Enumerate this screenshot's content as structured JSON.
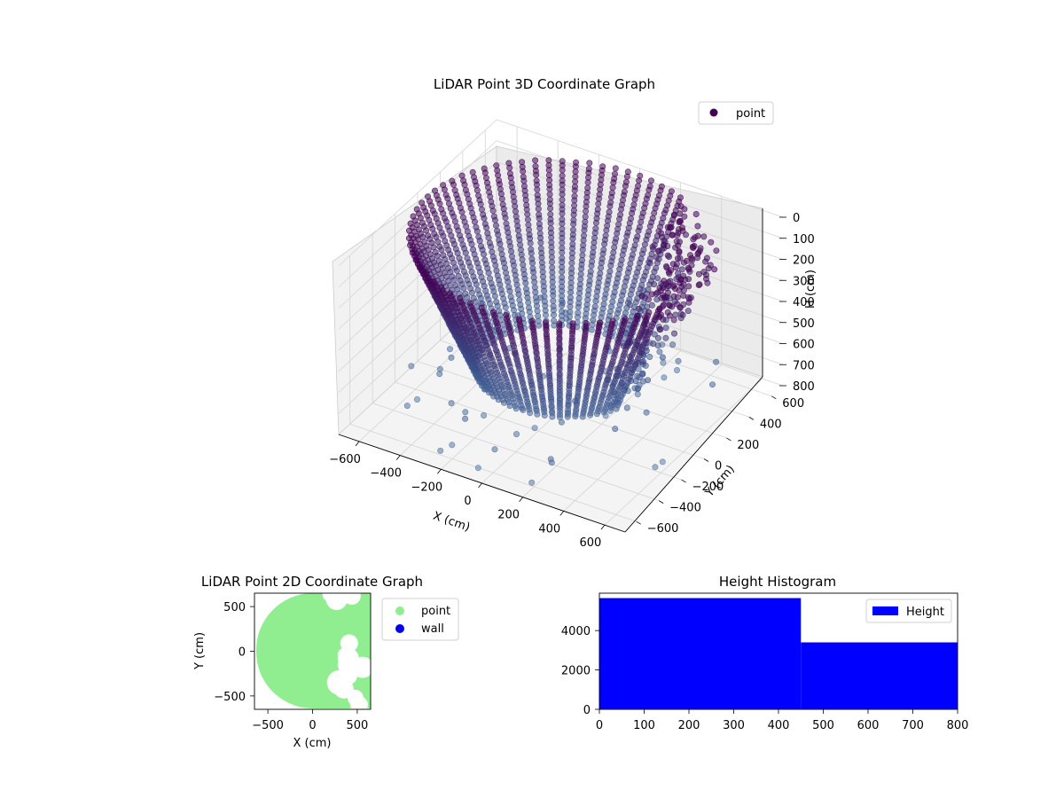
{
  "chart_data": [
    {
      "type": "scatter",
      "title": "LiDAR Point 3D Coordinate Graph",
      "xlabel": "X (cm)",
      "ylabel": "Y (cm)",
      "zlabel": "H (cm)",
      "xlim": [
        -700,
        700
      ],
      "ylim": [
        -700,
        700
      ],
      "zlim": [
        800,
        0
      ],
      "xticks": [
        "−600",
        "−400",
        "−200",
        "0",
        "200",
        "400",
        "600"
      ],
      "yticks": [
        "−600",
        "−400",
        "−200",
        "0",
        "200",
        "400",
        "600"
      ],
      "zticks": [
        "0",
        "100",
        "200",
        "300",
        "400",
        "500",
        "600",
        "700",
        "800"
      ],
      "grid": true,
      "legend": {
        "position": "top-right",
        "entries": [
          {
            "name": "point",
            "color": "#440154"
          }
        ]
      },
      "colors": {
        "top": "#440154",
        "mid": "#3b528b",
        "bottom": "#5b7fa8"
      },
      "scan": {
        "radius_cm": 650,
        "h_max_cm": 800,
        "note": "cylindrical wall scan with open floor"
      }
    },
    {
      "type": "scatter",
      "title": "LiDAR Point 2D Coordinate Graph",
      "xlabel": "X (cm)",
      "ylabel": "Y (cm)",
      "xlim": [
        -650,
        650
      ],
      "ylim": [
        -650,
        650
      ],
      "xticks": [
        "−500",
        "0",
        "500"
      ],
      "yticks": [
        "−500",
        "0",
        "500"
      ],
      "legend": {
        "position": "outside-right",
        "entries": [
          {
            "name": "point",
            "color": "#90ee90"
          },
          {
            "name": "wall",
            "color": "#0000ee"
          }
        ]
      }
    },
    {
      "type": "bar",
      "title": "Height Histogram",
      "bins": [
        [
          0,
          450
        ],
        [
          450,
          800
        ]
      ],
      "values": [
        5650,
        3400
      ],
      "xlim": [
        0,
        800
      ],
      "ylim": [
        0,
        5900
      ],
      "xticks": [
        "0",
        "100",
        "200",
        "300",
        "400",
        "500",
        "600",
        "700",
        "800"
      ],
      "yticks": [
        "0",
        "2000",
        "4000"
      ],
      "color": "#0000ff",
      "legend": {
        "position": "top-right",
        "entries": [
          {
            "name": "Height",
            "color": "#0000ff"
          }
        ]
      }
    }
  ]
}
